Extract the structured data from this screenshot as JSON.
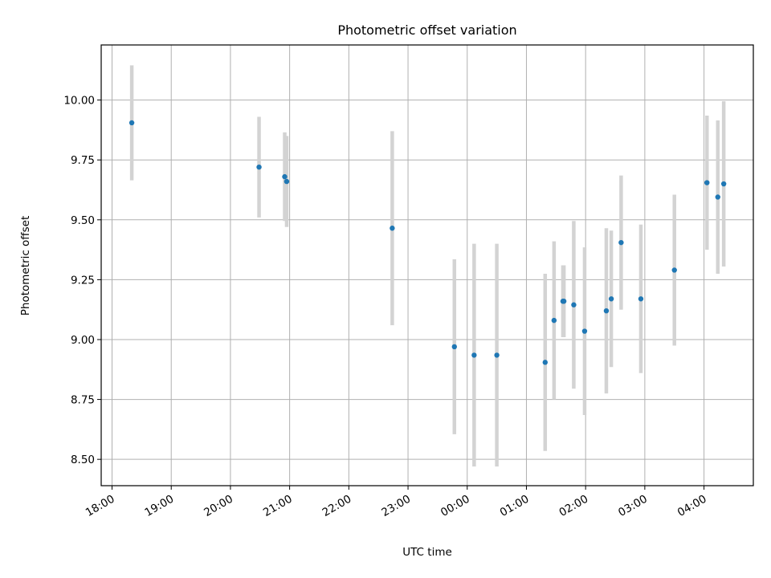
{
  "chart_data": {
    "type": "scatter",
    "title": "Photometric offset variation",
    "xlabel": "UTC time",
    "ylabel": "Photometric offset",
    "x_axis_kind": "time (HH:MM, UTC)",
    "x_ticks": [
      "18:00",
      "19:00",
      "20:00",
      "21:00",
      "22:00",
      "23:00",
      "00:00",
      "01:00",
      "02:00",
      "03:00",
      "04:00"
    ],
    "x_tick_hours": [
      18,
      19,
      20,
      21,
      22,
      23,
      24,
      25,
      26,
      27,
      28
    ],
    "xlim": [
      "17:49",
      "28:50"
    ],
    "y_ticks": [
      "8.50",
      "8.75",
      "9.00",
      "9.25",
      "9.50",
      "9.75",
      "10.00"
    ],
    "y_tick_values": [
      8.5,
      8.75,
      9.0,
      9.25,
      9.5,
      9.75,
      10.0
    ],
    "ylim": [
      8.39,
      10.23
    ],
    "grid": true,
    "colors": {
      "points": "#1f77b4",
      "errorbars": "#d3d3d3",
      "grid": "#b0b0b0"
    },
    "points": [
      {
        "t": "18:20",
        "y": 9.905,
        "err": 0.24
      },
      {
        "t": "20:29",
        "y": 9.72,
        "err": 0.21
      },
      {
        "t": "20:55",
        "y": 9.68,
        "err": 0.185
      },
      {
        "t": "20:57",
        "y": 9.66,
        "err": 0.19
      },
      {
        "t": "22:44",
        "y": 9.465,
        "err": 0.405
      },
      {
        "t": "23:47",
        "y": 8.97,
        "err": 0.365
      },
      {
        "t": "00:07",
        "y": 8.935,
        "err": 0.465
      },
      {
        "t": "00:30",
        "y": 8.935,
        "err": 0.465
      },
      {
        "t": "01:19",
        "y": 8.905,
        "err": 0.37
      },
      {
        "t": "01:28",
        "y": 9.08,
        "err": 0.33
      },
      {
        "t": "01:37",
        "y": 9.16,
        "err": 0.15
      },
      {
        "t": "01:38",
        "y": 9.16,
        "err": 0.15
      },
      {
        "t": "01:48",
        "y": 9.145,
        "err": 0.35
      },
      {
        "t": "01:59",
        "y": 9.035,
        "err": 0.35
      },
      {
        "t": "02:21",
        "y": 9.12,
        "err": 0.345
      },
      {
        "t": "02:26",
        "y": 9.17,
        "err": 0.285
      },
      {
        "t": "02:36",
        "y": 9.405,
        "err": 0.28
      },
      {
        "t": "02:56",
        "y": 9.17,
        "err": 0.31
      },
      {
        "t": "03:30",
        "y": 9.29,
        "err": 0.315
      },
      {
        "t": "04:03",
        "y": 9.655,
        "err": 0.28
      },
      {
        "t": "04:14",
        "y": 9.595,
        "err": 0.32
      },
      {
        "t": "04:20",
        "y": 9.65,
        "err": 0.345
      }
    ]
  }
}
